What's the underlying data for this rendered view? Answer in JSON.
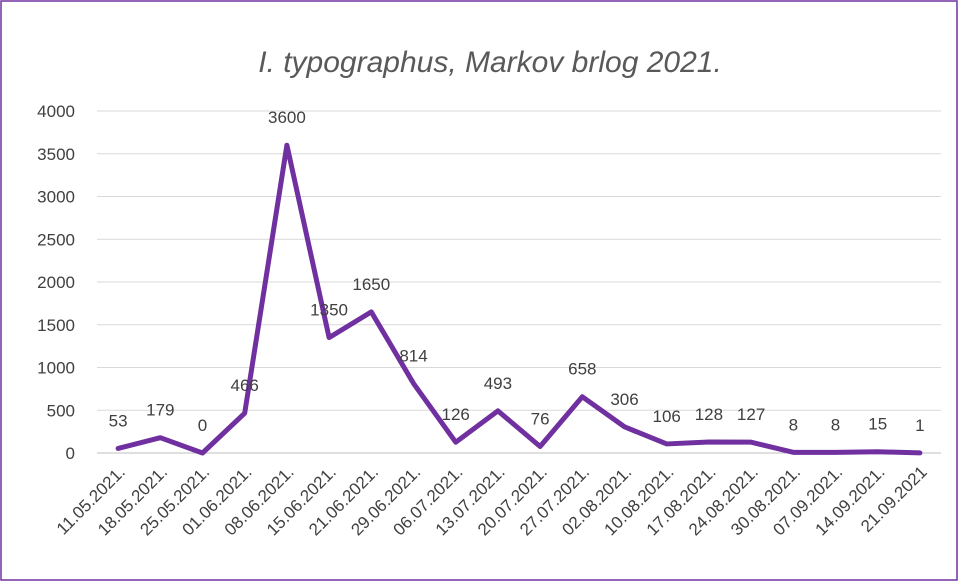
{
  "chart_data": {
    "type": "line",
    "title": "I. typographus, Markov brlog 2021.",
    "categories": [
      "11.05.2021.",
      "18.05.2021.",
      "25.05.2021.",
      "01.06.2021.",
      "08.06.2021.",
      "15.06.2021.",
      "21.06.2021.",
      "29.06.2021.",
      "06.07.2021.",
      "13.07.2021.",
      "20.07.2021.",
      "27.07.2021.",
      "02.08.2021.",
      "10.08.2021.",
      "17.08.2021.",
      "24.08.2021.",
      "30.08.2021.",
      "07.09.2021.",
      "14.09.2021.",
      "21.09.2021"
    ],
    "series": [
      {
        "name": "I. typographus",
        "color": "#7030a0",
        "values": [
          53,
          179,
          0,
          466,
          3600,
          1350,
          1650,
          814,
          126,
          493,
          76,
          658,
          306,
          106,
          128,
          127,
          8,
          8,
          15,
          1
        ]
      }
    ],
    "ylim": [
      0,
      4000
    ],
    "yticks": [
      0,
      500,
      1000,
      1500,
      2000,
      2500,
      3000,
      3500,
      4000
    ],
    "grid": true
  }
}
